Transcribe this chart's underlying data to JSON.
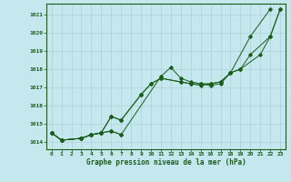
{
  "title": "Graphe pression niveau de la mer (hPa)",
  "bg_color": "#c5e8ee",
  "grid_color": "#b0d0d8",
  "line_color": "#1a5c1a",
  "xlim": [
    -0.5,
    23.5
  ],
  "ylim": [
    1013.6,
    1021.6
  ],
  "yticks": [
    1014,
    1015,
    1016,
    1017,
    1018,
    1019,
    1020,
    1021
  ],
  "xticks": [
    0,
    1,
    2,
    3,
    4,
    5,
    6,
    7,
    8,
    9,
    10,
    11,
    12,
    13,
    14,
    15,
    16,
    17,
    18,
    19,
    20,
    21,
    22,
    23
  ],
  "series_data": {
    "line1": {
      "x": [
        0,
        1,
        3,
        4,
        5,
        6,
        7,
        11,
        12,
        13,
        14,
        15,
        16,
        17,
        18,
        20,
        22
      ],
      "y": [
        1014.5,
        1014.1,
        1014.2,
        1014.4,
        1014.5,
        1014.6,
        1014.4,
        1017.6,
        1018.1,
        1017.5,
        1017.3,
        1017.2,
        1017.1,
        1017.2,
        1017.8,
        1019.8,
        1021.3
      ]
    },
    "line2": {
      "x": [
        0,
        1,
        3,
        4,
        5,
        6,
        7,
        9,
        10,
        11,
        13,
        14,
        15,
        16,
        17,
        18,
        19,
        21,
        22,
        23
      ],
      "y": [
        1014.5,
        1014.1,
        1014.2,
        1014.4,
        1014.5,
        1015.4,
        1015.2,
        1016.6,
        1017.2,
        1017.5,
        1017.3,
        1017.2,
        1017.1,
        1017.2,
        1017.3,
        1017.8,
        1018.0,
        1018.8,
        1019.8,
        1021.3
      ]
    },
    "line3": {
      "x": [
        0,
        1,
        3,
        4,
        5,
        6,
        7
      ],
      "y": [
        1014.5,
        1014.1,
        1014.2,
        1014.4,
        1014.5,
        1014.6,
        1014.4
      ]
    },
    "line4": {
      "x": [
        0,
        1,
        3,
        4,
        5,
        6,
        7,
        9,
        10,
        11,
        13,
        14,
        15,
        16,
        17,
        18,
        19,
        20,
        22,
        23
      ],
      "y": [
        1014.5,
        1014.1,
        1014.2,
        1014.4,
        1014.5,
        1015.4,
        1015.2,
        1016.6,
        1017.2,
        1017.5,
        1017.3,
        1017.2,
        1017.2,
        1017.2,
        1017.3,
        1017.8,
        1018.0,
        1018.8,
        1019.8,
        1021.3
      ]
    }
  }
}
